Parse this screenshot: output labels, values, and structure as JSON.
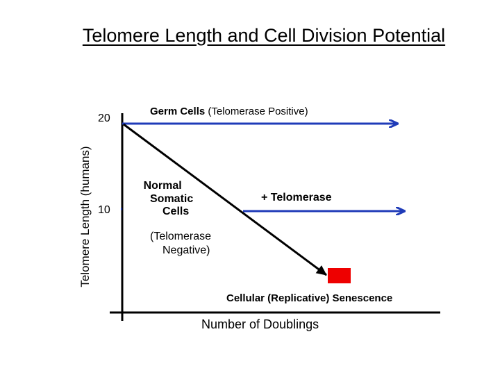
{
  "title": "Telomere Length and Cell Division Potential",
  "y_axis_label": "Telomere Length (humans)",
  "x_axis_label": "Number of Doublings",
  "ticks": {
    "high": "20",
    "low": "10"
  },
  "germ_cells": {
    "bold": "Germ Cells",
    "rest": " (Telomerase Positive)"
  },
  "normal_somatic": [
    "Normal",
    "Somatic",
    "Cells"
  ],
  "telomerase_added": "+ Telomerase",
  "telomerase_negative": [
    "(Telomerase",
    "Negative)"
  ],
  "senescence": "Cellular (Replicative) Senescence",
  "colors": {
    "arrow": "#1f3bb8",
    "line": "#000000",
    "senescence_box": "#ee0000"
  }
}
